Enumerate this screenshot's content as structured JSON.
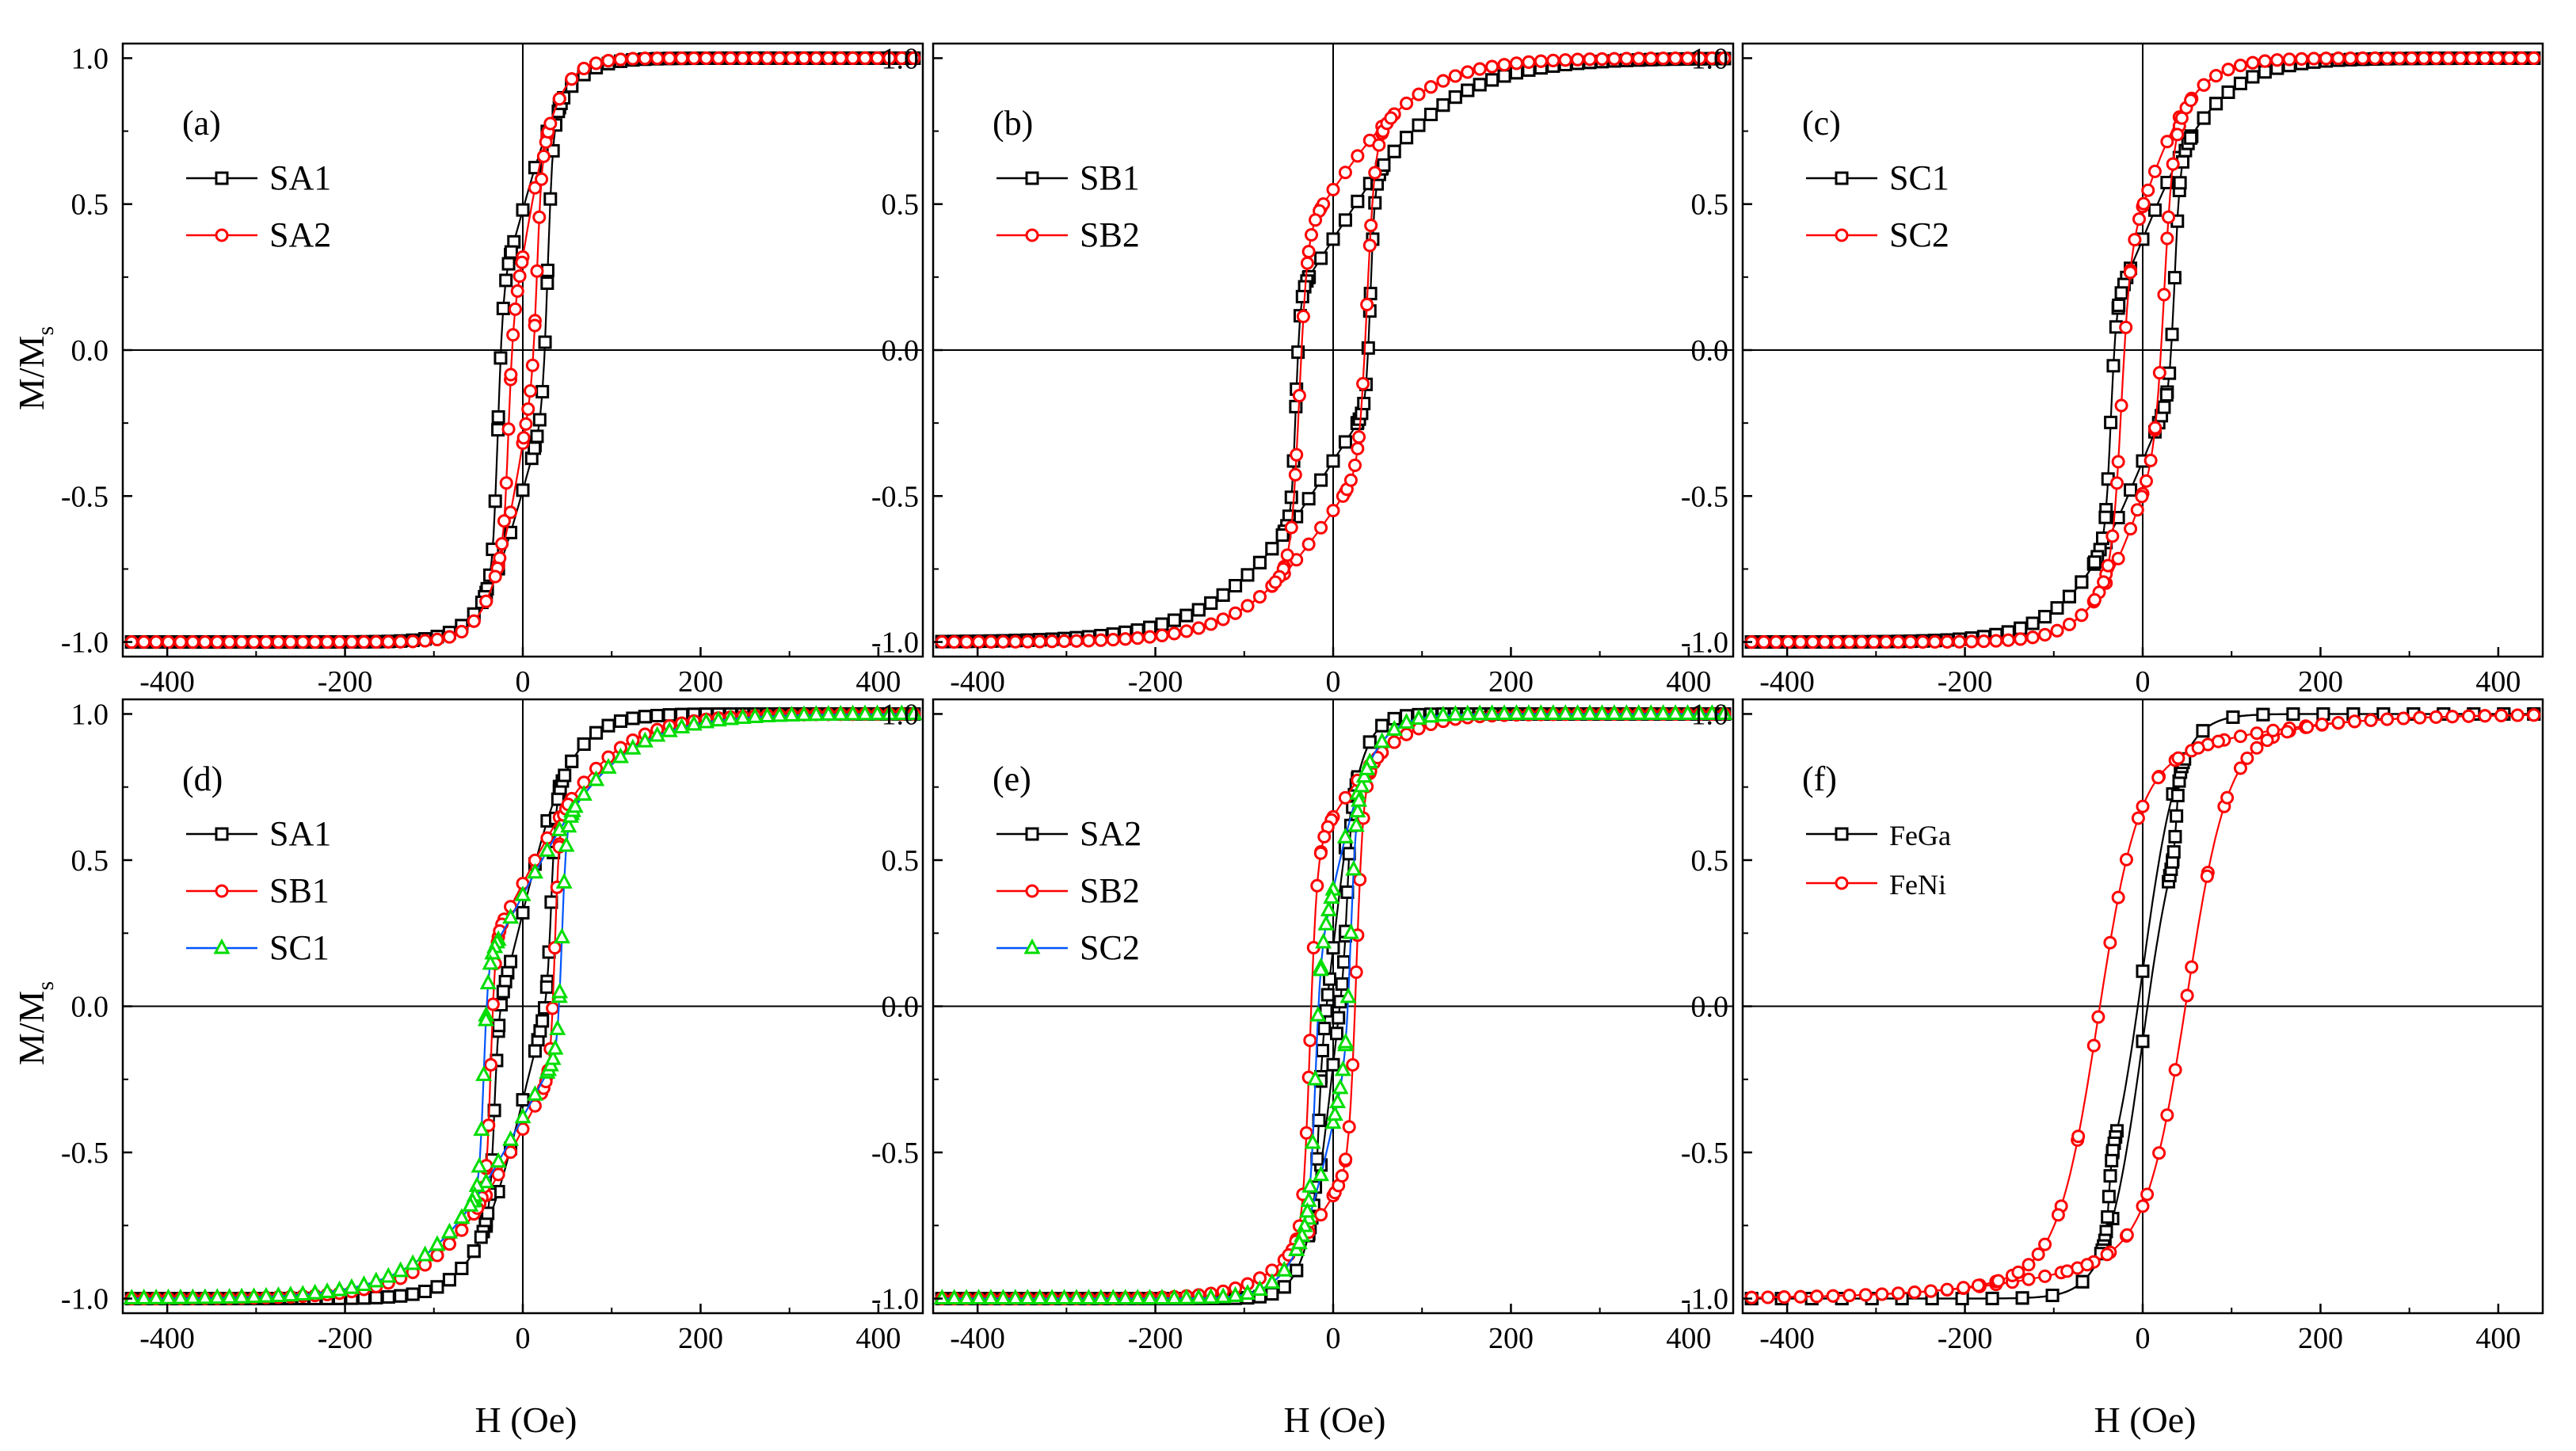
{
  "figure": {
    "ylabel_main": "M/M",
    "ylabel_sub": "s",
    "xlabel": "H (Oe)"
  },
  "chart_data": [
    {
      "id": "a",
      "type": "line",
      "panel_label": "(a)",
      "xlim": [
        -450,
        450
      ],
      "ylim": [
        -1.05,
        1.05
      ],
      "xticks": [
        -400,
        -200,
        0,
        200,
        400
      ],
      "xtick_labels": [
        "-400",
        "-200",
        "0",
        "200",
        "400"
      ],
      "yticks": [
        -1.0,
        -0.5,
        0.0,
        0.5,
        1.0
      ],
      "ytick_labels": [
        "-1.0",
        "-0.5",
        "0.0",
        "0.5",
        "1.0"
      ],
      "xlabel": "",
      "ylabel": "M/Ms",
      "series": [
        {
          "name": "SA1",
          "color": "#000000",
          "marker": "square",
          "hc": 28,
          "w": 6,
          "k": 0.52,
          "tau": 48,
          "steps": 64
        },
        {
          "name": "SA2",
          "color": "#ff0000",
          "marker": "circle",
          "hc": 16,
          "w": 5,
          "k": 0.68,
          "tau": 38,
          "steps": 64
        }
      ]
    },
    {
      "id": "b",
      "type": "line",
      "panel_label": "(b)",
      "xlim": [
        -450,
        450
      ],
      "ylim": [
        -1.05,
        1.05
      ],
      "xticks": [
        -400,
        -200,
        0,
        200,
        400
      ],
      "xtick_labels": [
        "-400",
        "-200",
        "0",
        "200",
        "400"
      ],
      "yticks": [
        -1.0,
        -0.5,
        0.0,
        0.5,
        1.0
      ],
      "ytick_labels": [
        "-1.0",
        "-0.5",
        "0.0",
        "0.5",
        "1.0"
      ],
      "xlabel": "",
      "ylabel": "",
      "series": [
        {
          "name": "SB1",
          "color": "#000000",
          "marker": "square",
          "hc": 42,
          "w": 5,
          "k": 0.62,
          "tau": 130,
          "steps": 64
        },
        {
          "name": "SB2",
          "color": "#ff0000",
          "marker": "circle",
          "hc": 38,
          "w": 9,
          "k": 0.45,
          "tau": 105,
          "steps": 64
        }
      ]
    },
    {
      "id": "c",
      "type": "line",
      "panel_label": "(c)",
      "xlim": [
        -450,
        450
      ],
      "ylim": [
        -1.05,
        1.05
      ],
      "xticks": [
        -400,
        -200,
        0,
        200,
        400
      ],
      "xtick_labels": [
        "-400",
        "-200",
        "0",
        "200",
        "400"
      ],
      "yticks": [
        -1.0,
        -0.5,
        0.0,
        0.5,
        1.0
      ],
      "ytick_labels": [
        "-1.0",
        "-0.5",
        "0.0",
        "0.5",
        "1.0"
      ],
      "xlabel": "",
      "ylabel": "",
      "series": [
        {
          "name": "SC1",
          "color": "#000000",
          "marker": "square",
          "hc": 36,
          "w": 6,
          "k": 0.62,
          "tau": 85,
          "steps": 64
        },
        {
          "name": "SC2",
          "color": "#ff0000",
          "marker": "circle",
          "hc": 24,
          "w": 10,
          "k": 0.5,
          "tau": 60,
          "steps": 64
        }
      ]
    },
    {
      "id": "d",
      "type": "line",
      "panel_label": "(d)",
      "xlim": [
        -450,
        450
      ],
      "ylim": [
        -1.05,
        1.05
      ],
      "xticks": [
        -400,
        -200,
        0,
        200,
        400
      ],
      "xtick_labels": [
        "-400",
        "-200",
        "0",
        "200",
        "400"
      ],
      "yticks": [
        -1.0,
        -0.5,
        0.0,
        0.5,
        1.0
      ],
      "ytick_labels": [
        "-1.0",
        "-0.5",
        "0.0",
        "0.5",
        "1.0"
      ],
      "xlabel": "H (Oe)",
      "ylabel": "M/Ms",
      "series": [
        {
          "name": "SA1",
          "color": "#000000",
          "marker": "square",
          "hc": 32,
          "w": 5,
          "k": 0.68,
          "tau": 55,
          "steps": 64
        },
        {
          "name": "SB1",
          "color": "#ff0000",
          "marker": "circle",
          "hc": 36,
          "w": 5,
          "k": 0.58,
          "tau": 100,
          "steps": 64
        },
        {
          "name": "SC1",
          "color": "#0055ff",
          "marker": "triangle",
          "markercolor": "#00dd00",
          "hc": 44,
          "w": 5,
          "k": 0.62,
          "tau": 110,
          "steps": 64
        }
      ]
    },
    {
      "id": "e",
      "type": "line",
      "panel_label": "(e)",
      "xlim": [
        -450,
        450
      ],
      "ylim": [
        -1.05,
        1.05
      ],
      "xticks": [
        -400,
        -200,
        0,
        200,
        400
      ],
      "xtick_labels": [
        "-400",
        "-200",
        "0",
        "200",
        "400"
      ],
      "yticks": [
        -1.0,
        -0.5,
        0.0,
        0.5,
        1.0
      ],
      "ytick_labels": [
        "-1.0",
        "-0.5",
        "0.0",
        "0.5",
        "1.0"
      ],
      "xlabel": "H (Oe)",
      "ylabel": "",
      "series": [
        {
          "name": "SA2",
          "color": "#000000",
          "marker": "square",
          "hc": 16,
          "w": 4,
          "k": 0.8,
          "tau": 30,
          "steps": 64
        },
        {
          "name": "SB2",
          "color": "#ff0000",
          "marker": "circle",
          "hc": 26,
          "w": 8,
          "k": 0.35,
          "tau": 75,
          "steps": 64
        },
        {
          "name": "SC2",
          "color": "#0055ff",
          "marker": "triangle",
          "markercolor": "#00dd00",
          "hc": 20,
          "w": 6,
          "k": 0.6,
          "tau": 45,
          "steps": 64
        }
      ]
    },
    {
      "id": "f",
      "type": "line",
      "panel_label": "(f)",
      "xlim": [
        -450,
        450
      ],
      "ylim": [
        -1.05,
        1.05
      ],
      "xticks": [
        -400,
        -200,
        0,
        200,
        400
      ],
      "xtick_labels": [
        "-400",
        "-200",
        "0",
        "200",
        "400"
      ],
      "yticks": [
        -1.0,
        -0.5,
        0.0,
        0.5,
        1.0
      ],
      "ytick_labels": [
        "-1.0",
        "-0.5",
        "0.0",
        "0.5",
        "1.0"
      ],
      "xlabel": "H (Oe)",
      "ylabel": "",
      "series": [
        {
          "name": "FeGa",
          "color": "#000000",
          "marker": "square",
          "hc": 38,
          "w": 3,
          "k": 0.88,
          "tau": 40,
          "steps": 26
        },
        {
          "name": "FeNi",
          "color": "#ff0000",
          "marker": "circle",
          "hc": 50,
          "w": 45,
          "k": 0.15,
          "tau": 200,
          "steps": 48
        }
      ]
    }
  ]
}
